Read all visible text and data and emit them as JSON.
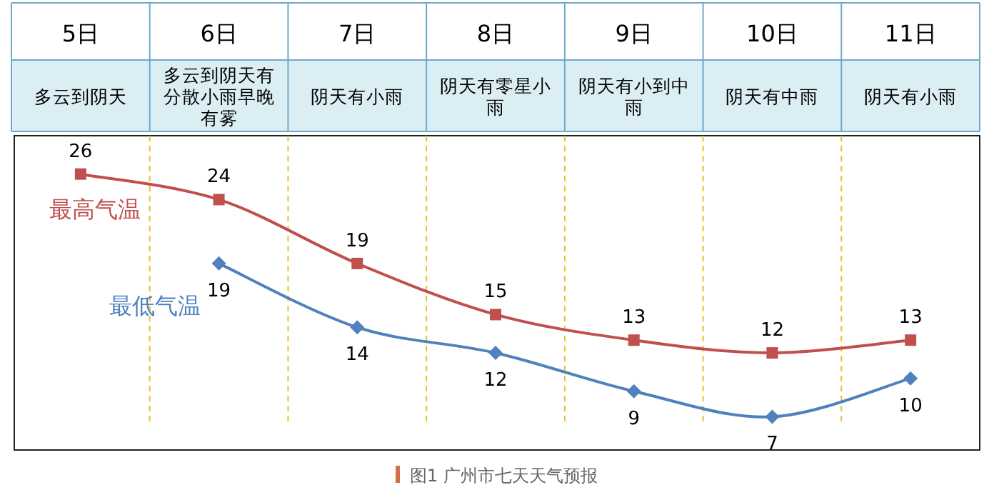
{
  "chart_data": {
    "type": "line",
    "categories": [
      "5日",
      "6日",
      "7日",
      "8日",
      "9日",
      "10日",
      "11日"
    ],
    "series": [
      {
        "name": "最高气温",
        "color": "#c0504d",
        "marker": "square",
        "values": [
          26,
          24,
          19,
          15,
          13,
          12,
          13
        ]
      },
      {
        "name": "最低气温",
        "color": "#4f81bd",
        "marker": "diamond",
        "values": [
          null,
          19,
          14,
          12,
          9,
          7,
          10
        ]
      }
    ],
    "data_labels": true,
    "grid": "x",
    "legend": false,
    "annotations": [
      "多云到阴天",
      "多云到阴天有分散小雨早晚有雾",
      "阴天有小雨",
      "阴天有零星小雨",
      "阴天有小到中雨",
      "阴天有中雨",
      "阴天有小雨",
      "图1 广州市七天天气预报"
    ]
  }
}
